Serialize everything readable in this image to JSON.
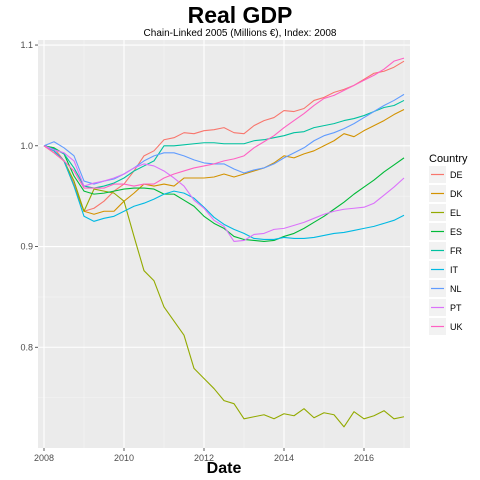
{
  "chart_data": {
    "type": "line",
    "title": "Real GDP",
    "subtitle": "Chain-Linked 2005 (Millions €), Index: 2008",
    "xlabel": "Date",
    "ylabel": "",
    "xlim": [
      2007.85,
      2017.15
    ],
    "ylim": [
      0.7,
      1.105
    ],
    "x_ticks": [
      2008,
      2010,
      2012,
      2014,
      2016
    ],
    "x_tick_labels": [
      "2008",
      "2010",
      "2012",
      "2014",
      "2016"
    ],
    "y_ticks": [
      0.8,
      0.9,
      1.0,
      1.1
    ],
    "y_tick_labels": [
      "0.8",
      "0.9",
      "1.0",
      "1.1"
    ],
    "grid": true,
    "legend": {
      "title": "Country",
      "position": "right"
    },
    "series": [
      {
        "name": "DE",
        "color": "#F8766D",
        "x": [
          2008,
          2008.25,
          2008.5,
          2008.75,
          2009,
          2009.25,
          2009.5,
          2009.75,
          2010,
          2010.25,
          2010.5,
          2010.75,
          2011,
          2011.25,
          2011.5,
          2011.75,
          2012,
          2012.25,
          2012.5,
          2012.75,
          2013,
          2013.25,
          2013.5,
          2013.75,
          2014,
          2014.25,
          2014.5,
          2014.75,
          2015,
          2015.25,
          2015.5,
          2015.75,
          2016,
          2016.25,
          2016.5,
          2016.75,
          2017
        ],
        "y": [
          1.0,
          0.998,
          0.985,
          0.962,
          0.935,
          0.938,
          0.945,
          0.955,
          0.962,
          0.975,
          0.99,
          0.995,
          1.006,
          1.008,
          1.013,
          1.012,
          1.015,
          1.016,
          1.018,
          1.013,
          1.012,
          1.02,
          1.025,
          1.028,
          1.035,
          1.034,
          1.037,
          1.045,
          1.048,
          1.053,
          1.056,
          1.06,
          1.066,
          1.072,
          1.074,
          1.078,
          1.084
        ]
      },
      {
        "name": "DK",
        "color": "#D39200",
        "x": [
          2008,
          2008.25,
          2008.5,
          2008.75,
          2009,
          2009.25,
          2009.5,
          2009.75,
          2010,
          2010.25,
          2010.5,
          2010.75,
          2011,
          2011.25,
          2011.5,
          2011.75,
          2012,
          2012.25,
          2012.5,
          2012.75,
          2013,
          2013.25,
          2013.5,
          2013.75,
          2014,
          2014.25,
          2014.5,
          2014.75,
          2015,
          2015.25,
          2015.5,
          2015.75,
          2016,
          2016.25,
          2016.5,
          2016.75,
          2017
        ],
        "y": [
          1.0,
          0.993,
          0.985,
          0.96,
          0.935,
          0.932,
          0.935,
          0.935,
          0.945,
          0.953,
          0.962,
          0.96,
          0.962,
          0.96,
          0.968,
          0.968,
          0.968,
          0.969,
          0.972,
          0.969,
          0.972,
          0.975,
          0.978,
          0.983,
          0.99,
          0.988,
          0.992,
          0.995,
          1.0,
          1.005,
          1.012,
          1.009,
          1.015,
          1.02,
          1.025,
          1.031,
          1.036
        ]
      },
      {
        "name": "EL",
        "color": "#93AA00",
        "x": [
          2008,
          2008.25,
          2008.5,
          2008.75,
          2009,
          2009.25,
          2009.5,
          2009.75,
          2010,
          2010.25,
          2010.5,
          2010.75,
          2011,
          2011.25,
          2011.5,
          2011.75,
          2012,
          2012.25,
          2012.5,
          2012.75,
          2013,
          2013.25,
          2013.5,
          2013.75,
          2014,
          2014.25,
          2014.5,
          2014.75,
          2015,
          2015.25,
          2015.5,
          2015.75,
          2016,
          2016.25,
          2016.5,
          2016.75,
          2017
        ],
        "y": [
          1.0,
          0.995,
          0.985,
          0.965,
          0.935,
          0.957,
          0.955,
          0.953,
          0.945,
          0.91,
          0.876,
          0.866,
          0.84,
          0.826,
          0.812,
          0.779,
          0.769,
          0.759,
          0.747,
          0.744,
          0.729,
          0.731,
          0.733,
          0.729,
          0.734,
          0.732,
          0.739,
          0.73,
          0.735,
          0.733,
          0.721,
          0.736,
          0.729,
          0.732,
          0.737,
          0.729,
          0.731
        ]
      },
      {
        "name": "ES",
        "color": "#00BA38",
        "x": [
          2008,
          2008.25,
          2008.5,
          2008.75,
          2009,
          2009.25,
          2009.5,
          2009.75,
          2010,
          2010.25,
          2010.5,
          2010.75,
          2011,
          2011.25,
          2011.5,
          2011.75,
          2012,
          2012.25,
          2012.5,
          2012.75,
          2013,
          2013.25,
          2013.5,
          2013.75,
          2014,
          2014.25,
          2014.5,
          2014.75,
          2015,
          2015.25,
          2015.5,
          2015.75,
          2016,
          2016.25,
          2016.5,
          2016.75,
          2017
        ],
        "y": [
          1.0,
          0.998,
          0.992,
          0.97,
          0.955,
          0.952,
          0.953,
          0.955,
          0.957,
          0.958,
          0.958,
          0.957,
          0.952,
          0.952,
          0.946,
          0.94,
          0.93,
          0.923,
          0.918,
          0.91,
          0.907,
          0.906,
          0.905,
          0.906,
          0.91,
          0.913,
          0.918,
          0.924,
          0.93,
          0.937,
          0.944,
          0.952,
          0.959,
          0.966,
          0.974,
          0.981,
          0.988
        ]
      },
      {
        "name": "FR",
        "color": "#00C19F",
        "x": [
          2008,
          2008.25,
          2008.5,
          2008.75,
          2009,
          2009.25,
          2009.5,
          2009.75,
          2010,
          2010.25,
          2010.5,
          2010.75,
          2011,
          2011.25,
          2011.5,
          2011.75,
          2012,
          2012.25,
          2012.5,
          2012.75,
          2013,
          2013.25,
          2013.5,
          2013.75,
          2014,
          2014.25,
          2014.5,
          2014.75,
          2015,
          2015.25,
          2015.5,
          2015.75,
          2016,
          2016.25,
          2016.5,
          2016.75,
          2017
        ],
        "y": [
          1.0,
          0.997,
          0.992,
          0.978,
          0.96,
          0.958,
          0.96,
          0.963,
          0.968,
          0.975,
          0.98,
          0.985,
          1.0,
          1.0,
          1.001,
          1.002,
          1.003,
          1.003,
          1.002,
          1.002,
          1.002,
          1.005,
          1.006,
          1.008,
          1.01,
          1.013,
          1.014,
          1.018,
          1.02,
          1.022,
          1.025,
          1.027,
          1.03,
          1.034,
          1.038,
          1.04,
          1.045
        ]
      },
      {
        "name": "IT",
        "color": "#00B9E3",
        "x": [
          2008,
          2008.25,
          2008.5,
          2008.75,
          2009,
          2009.25,
          2009.5,
          2009.75,
          2010,
          2010.25,
          2010.5,
          2010.75,
          2011,
          2011.25,
          2011.5,
          2011.75,
          2012,
          2012.25,
          2012.5,
          2012.75,
          2013,
          2013.25,
          2013.5,
          2013.75,
          2014,
          2014.25,
          2014.5,
          2014.75,
          2015,
          2015.25,
          2015.5,
          2015.75,
          2016,
          2016.25,
          2016.5,
          2016.75,
          2017
        ],
        "y": [
          1.0,
          0.995,
          0.985,
          0.96,
          0.93,
          0.925,
          0.928,
          0.93,
          0.935,
          0.94,
          0.943,
          0.947,
          0.952,
          0.955,
          0.953,
          0.948,
          0.939,
          0.929,
          0.922,
          0.917,
          0.913,
          0.908,
          0.907,
          0.907,
          0.909,
          0.908,
          0.908,
          0.909,
          0.911,
          0.913,
          0.914,
          0.916,
          0.918,
          0.92,
          0.923,
          0.926,
          0.931
        ]
      },
      {
        "name": "NL",
        "color": "#619CFF",
        "x": [
          2008,
          2008.25,
          2008.5,
          2008.75,
          2009,
          2009.25,
          2009.5,
          2009.75,
          2010,
          2010.25,
          2010.5,
          2010.75,
          2011,
          2011.25,
          2011.5,
          2011.75,
          2012,
          2012.25,
          2012.5,
          2012.75,
          2013,
          2013.25,
          2013.5,
          2013.75,
          2014,
          2014.25,
          2014.5,
          2014.75,
          2015,
          2015.25,
          2015.5,
          2015.75,
          2016,
          2016.25,
          2016.5,
          2016.75,
          2017
        ],
        "y": [
          1.0,
          1.004,
          0.998,
          0.99,
          0.965,
          0.962,
          0.965,
          0.967,
          0.972,
          0.978,
          0.985,
          0.99,
          0.993,
          0.993,
          0.99,
          0.986,
          0.983,
          0.982,
          0.982,
          0.977,
          0.973,
          0.976,
          0.978,
          0.982,
          0.988,
          0.993,
          0.998,
          1.005,
          1.01,
          1.013,
          1.017,
          1.022,
          1.028,
          1.034,
          1.04,
          1.045,
          1.051
        ]
      },
      {
        "name": "PT",
        "color": "#DB72FB",
        "x": [
          2008,
          2008.25,
          2008.5,
          2008.75,
          2009,
          2009.25,
          2009.5,
          2009.75,
          2010,
          2010.25,
          2010.5,
          2010.75,
          2011,
          2011.25,
          2011.5,
          2011.75,
          2012,
          2012.25,
          2012.5,
          2012.75,
          2013,
          2013.25,
          2013.5,
          2013.75,
          2014,
          2014.25,
          2014.5,
          2014.75,
          2015,
          2015.25,
          2015.5,
          2015.75,
          2016,
          2016.25,
          2016.5,
          2016.75,
          2017
        ],
        "y": [
          1.0,
          0.996,
          0.993,
          0.985,
          0.96,
          0.963,
          0.965,
          0.968,
          0.972,
          0.978,
          0.982,
          0.98,
          0.975,
          0.968,
          0.96,
          0.946,
          0.938,
          0.926,
          0.92,
          0.905,
          0.906,
          0.912,
          0.913,
          0.917,
          0.918,
          0.921,
          0.924,
          0.928,
          0.932,
          0.935,
          0.937,
          0.938,
          0.939,
          0.943,
          0.951,
          0.959,
          0.968
        ]
      },
      {
        "name": "UK",
        "color": "#FF61C3",
        "x": [
          2008,
          2008.25,
          2008.5,
          2008.75,
          2009,
          2009.25,
          2009.5,
          2009.75,
          2010,
          2010.25,
          2010.5,
          2010.75,
          2011,
          2011.25,
          2011.5,
          2011.75,
          2012,
          2012.25,
          2012.5,
          2012.75,
          2013,
          2013.25,
          2013.5,
          2013.75,
          2014,
          2014.25,
          2014.5,
          2014.75,
          2015,
          2015.25,
          2015.5,
          2015.75,
          2016,
          2016.25,
          2016.5,
          2016.75,
          2017
        ],
        "y": [
          1.0,
          0.993,
          0.985,
          0.975,
          0.958,
          0.958,
          0.958,
          0.962,
          0.962,
          0.96,
          0.962,
          0.962,
          0.968,
          0.972,
          0.975,
          0.978,
          0.98,
          0.982,
          0.985,
          0.987,
          0.99,
          0.998,
          1.004,
          1.01,
          1.018,
          1.025,
          1.032,
          1.04,
          1.047,
          1.05,
          1.055,
          1.06,
          1.065,
          1.07,
          1.076,
          1.084,
          1.087
        ]
      }
    ]
  }
}
